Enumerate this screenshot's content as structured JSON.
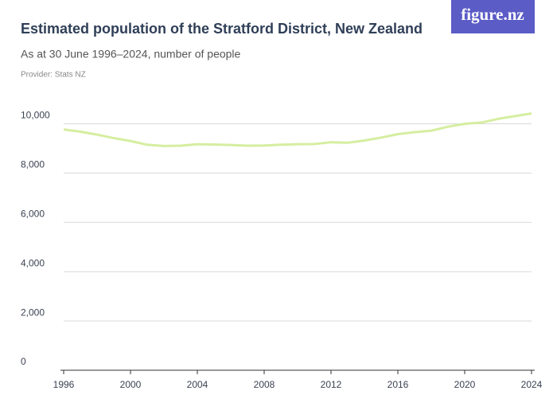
{
  "logo": "figure.nz",
  "chart_data": {
    "type": "line",
    "title": "Estimated population of the Stratford District, New Zealand",
    "subtitle": "As at 30 June 1996–2024, number of people",
    "source": "Provider: Stats NZ",
    "x": [
      1996,
      1997,
      1998,
      1999,
      2000,
      2001,
      2002,
      2003,
      2004,
      2005,
      2006,
      2007,
      2008,
      2009,
      2010,
      2011,
      2012,
      2013,
      2014,
      2015,
      2016,
      2017,
      2018,
      2019,
      2020,
      2021,
      2022,
      2023,
      2024
    ],
    "series": [
      {
        "name": "Population",
        "color": "#d5eea0",
        "values": [
          9770,
          9680,
          9560,
          9420,
          9300,
          9150,
          9100,
          9110,
          9170,
          9160,
          9140,
          9110,
          9120,
          9150,
          9170,
          9180,
          9250,
          9230,
          9320,
          9440,
          9580,
          9660,
          9720,
          9880,
          10000,
          10050,
          10200,
          10310,
          10420
        ]
      }
    ],
    "xlim": [
      1996,
      2024
    ],
    "xticks": [
      1996,
      2000,
      2004,
      2008,
      2012,
      2016,
      2020,
      2024
    ],
    "ylim": [
      0,
      10500
    ],
    "yticks": [
      0,
      {
        "value": 2000,
        "label": "2,000"
      },
      {
        "value": 4000,
        "label": "4,000"
      },
      {
        "value": 6000,
        "label": "6,000"
      },
      {
        "value": 8000,
        "label": "8,000"
      },
      {
        "value": 10000,
        "label": "10,000"
      }
    ],
    "grid": true
  }
}
